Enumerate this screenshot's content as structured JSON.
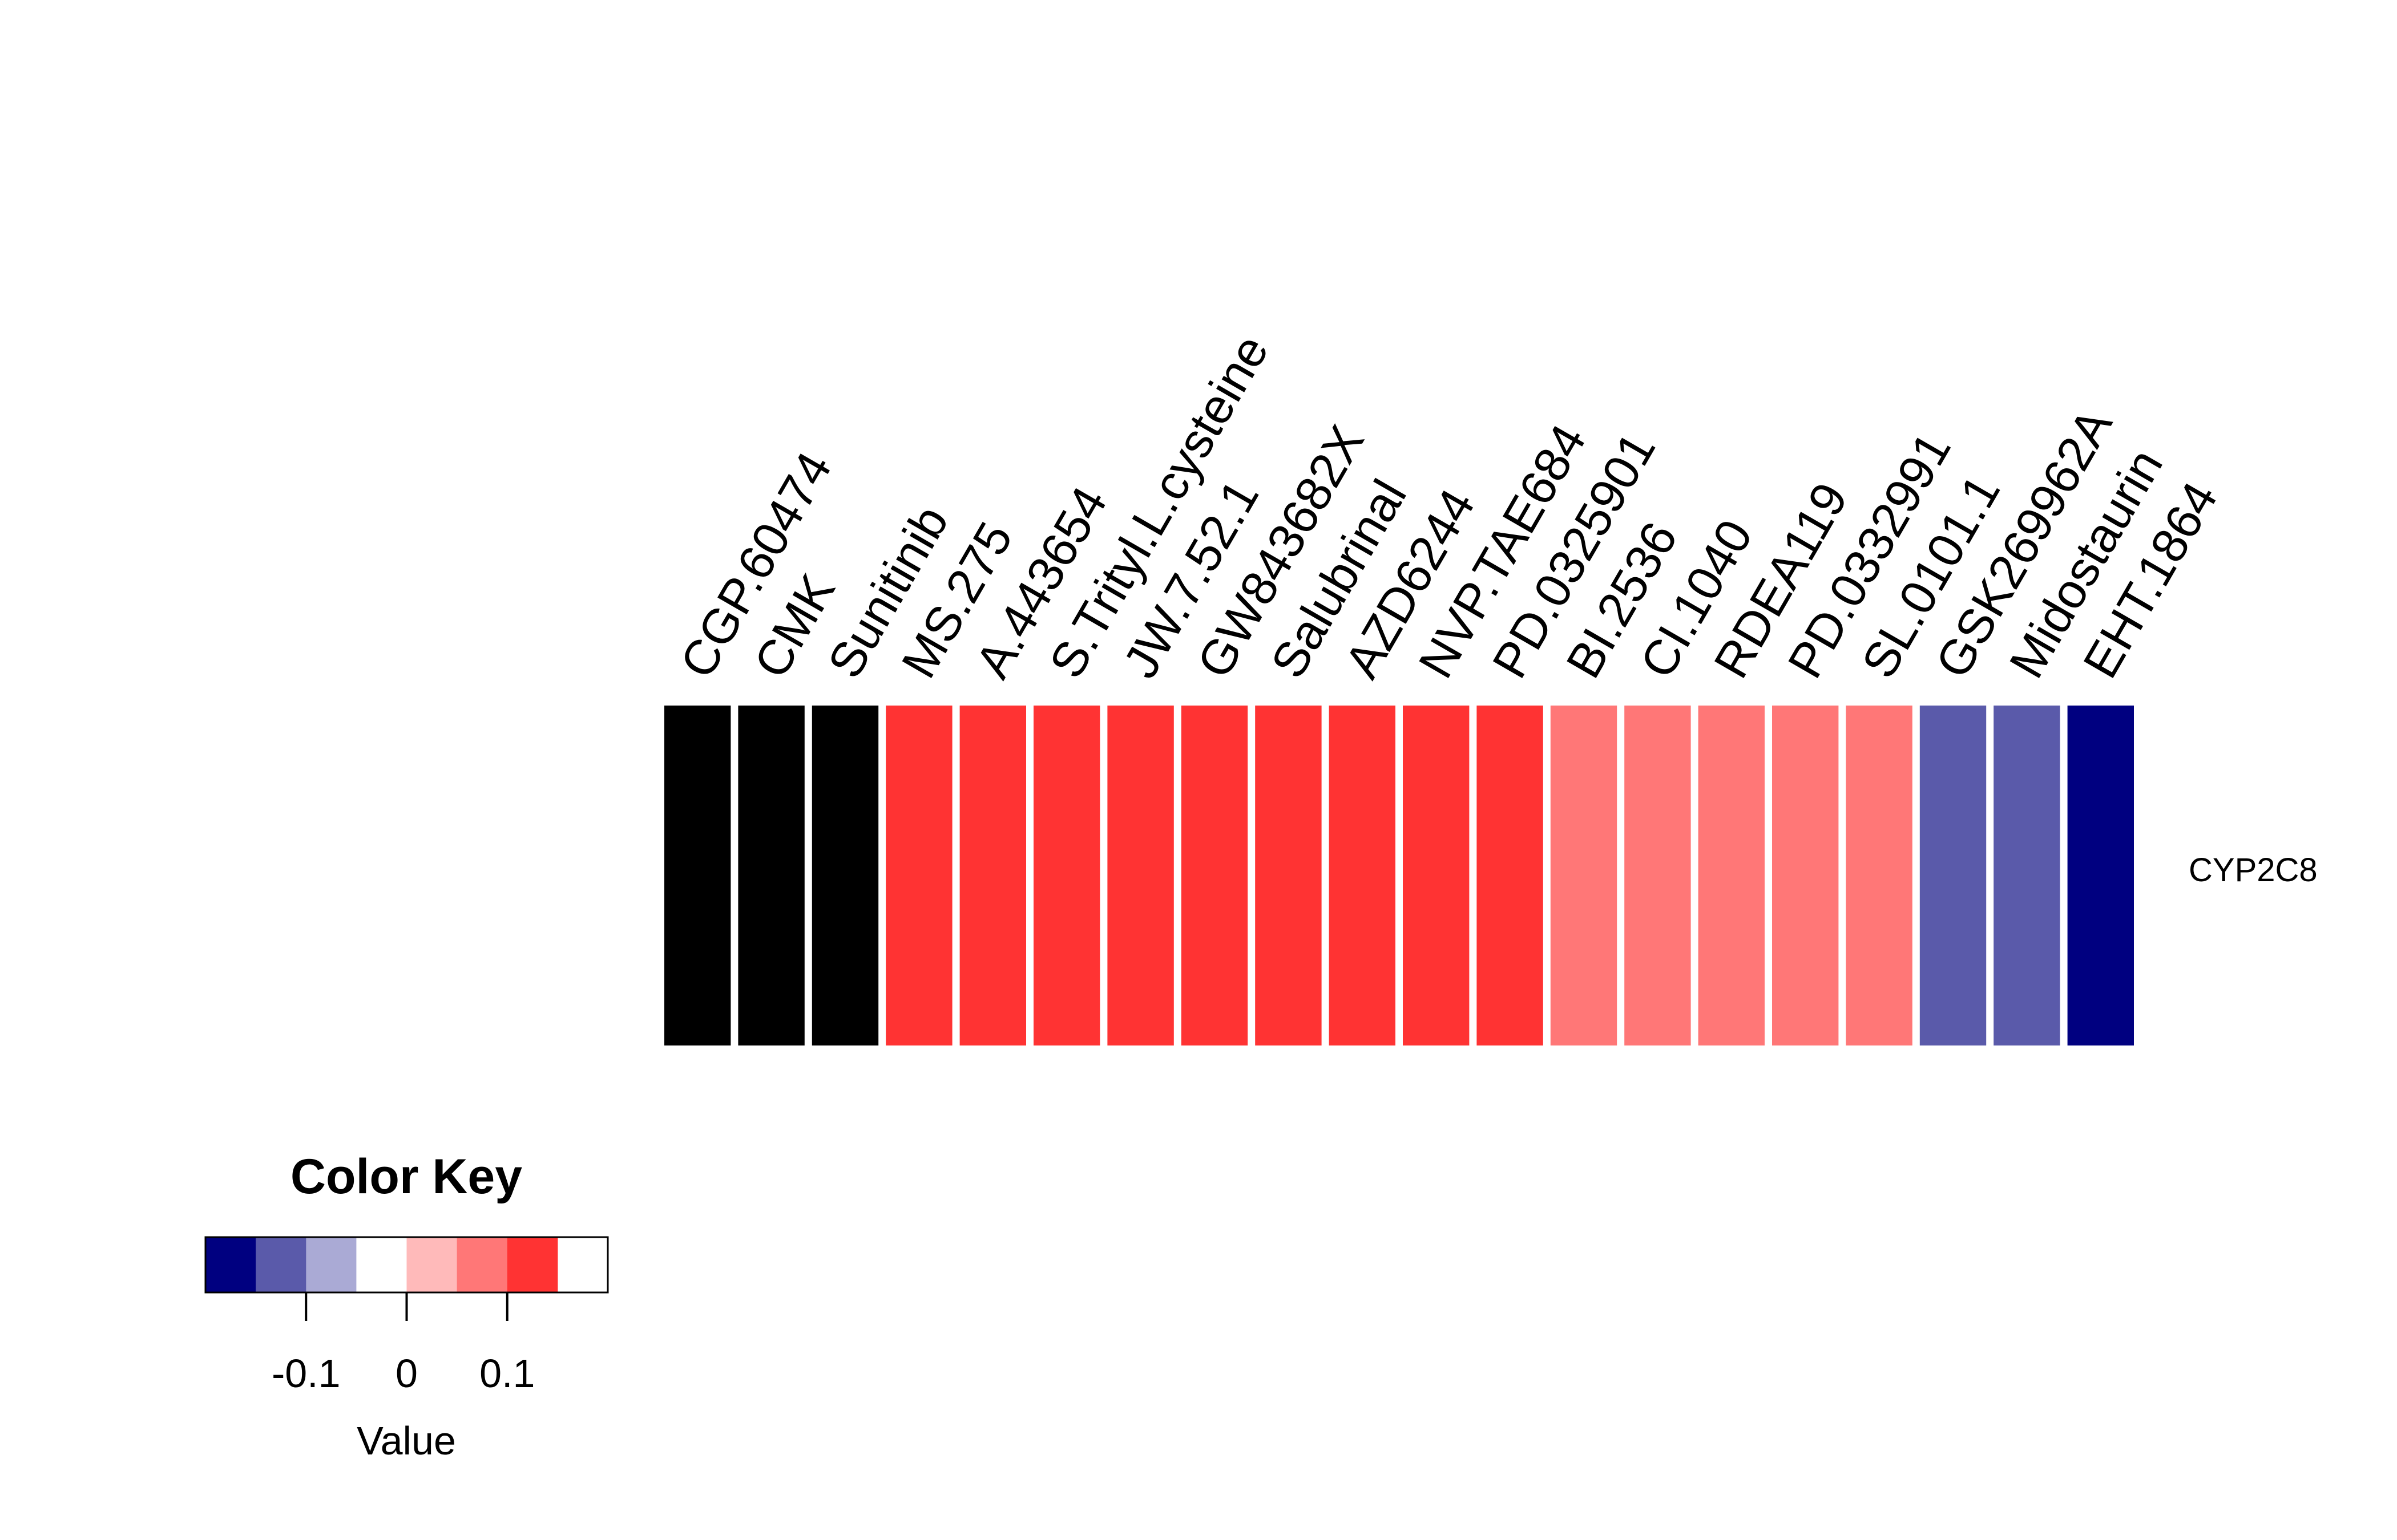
{
  "chart_data": {
    "type": "heatmap",
    "columns": [
      "CGP.60474",
      "CMK",
      "Sunitinib",
      "MS.275",
      "A.443654",
      "S.Trityl.L.cysteine",
      "JW.7.52.1",
      "GW843682X",
      "Salubrinal",
      "AZD6244",
      "NVP.TAE684",
      "PD.0325901",
      "BI.2536",
      "CI.1040",
      "RDEA119",
      "PD.0332991",
      "SL.0101.1",
      "GSK269962A",
      "Midostaurin",
      "EHT.1864"
    ],
    "rows": [
      "CYP2C8"
    ],
    "values": [
      [
        0.17,
        0.17,
        0.17,
        0.12,
        0.12,
        0.12,
        0.12,
        0.12,
        0.12,
        0.12,
        0.12,
        0.12,
        0.05,
        0.05,
        0.05,
        0.05,
        0.05,
        -0.12,
        -0.12,
        -0.17
      ]
    ],
    "color_key": {
      "title": "Color Key",
      "xlabel": "Value",
      "breaks": [
        -0.2,
        -0.15,
        -0.1,
        -0.05,
        0,
        0.05,
        0.1,
        0.15,
        0.2
      ],
      "colors": [
        "#000080",
        "#5A5AAA",
        "#AAAAD5",
        "#FFFFFF",
        "#FFBABA",
        "#FF7777",
        "#FF3333"
      ],
      "ticks": [
        -0.1,
        0,
        0.1
      ],
      "tick_labels": [
        "-0.1",
        "0",
        "0.1"
      ],
      "range": [
        -0.2,
        0.2
      ]
    }
  }
}
